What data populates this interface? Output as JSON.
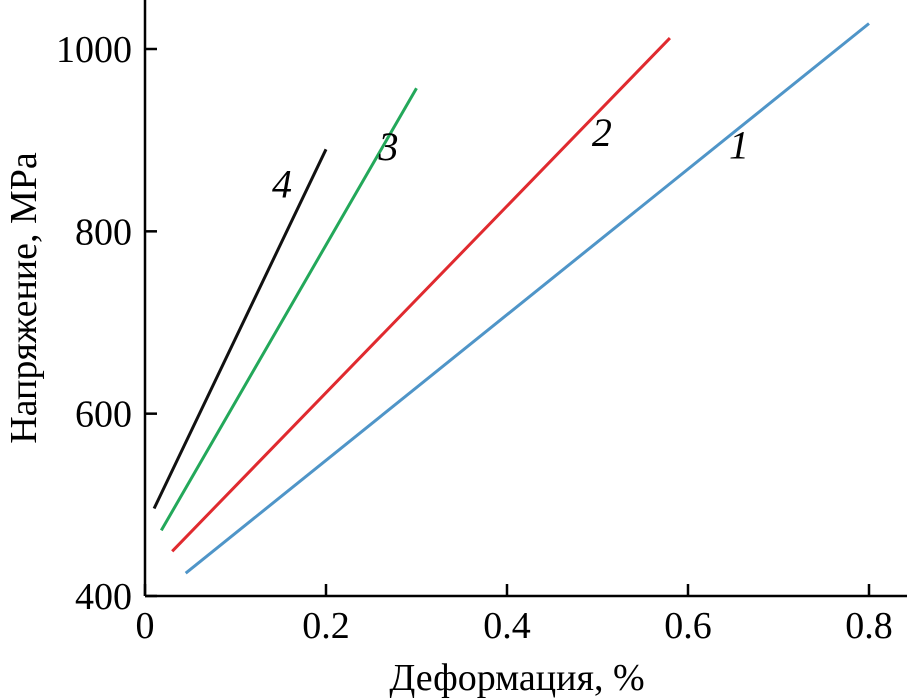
{
  "chart_data": {
    "type": "line",
    "title": "",
    "xlabel": "Деформация, %",
    "ylabel": "Напряжение, МРа",
    "xlim": [
      0,
      0.8
    ],
    "ylim": [
      400,
      1050
    ],
    "x_ticks": [
      0,
      0.2,
      0.4,
      0.6,
      0.8
    ],
    "x_tick_labels": [
      "0",
      "0.2",
      "0.4",
      "0.6",
      "0.8"
    ],
    "y_ticks": [
      400,
      600,
      800,
      1000
    ],
    "y_tick_labels": [
      "400",
      "600",
      "800",
      "1000"
    ],
    "grid": false,
    "legend": "none",
    "series": [
      {
        "label": "1",
        "color": "#4f95c8",
        "x": [
          0.045,
          0.8
        ],
        "y": [
          425,
          1028
        ]
      },
      {
        "label": "2",
        "color": "#e02a2f",
        "x": [
          0.03,
          0.58
        ],
        "y": [
          449,
          1012
        ]
      },
      {
        "label": "3",
        "color": "#23a85a",
        "x": [
          0.018,
          0.3
        ],
        "y": [
          472,
          957
        ]
      },
      {
        "label": "4",
        "color": "#111111",
        "x": [
          0.01,
          0.2
        ],
        "y": [
          496,
          890
        ]
      }
    ]
  }
}
